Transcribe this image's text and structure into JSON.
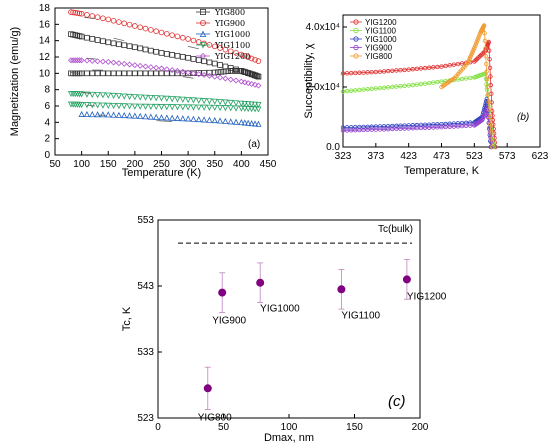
{
  "chart_data": [
    {
      "id": "a",
      "type": "scatter",
      "panel_label": "(a)",
      "xlabel": "Temperature (K)",
      "ylabel": "Magnetization (emu/g)",
      "xlim": [
        50,
        450
      ],
      "ylim": [
        0,
        18
      ],
      "xticks": [
        50,
        100,
        150,
        200,
        250,
        300,
        350,
        400,
        450
      ],
      "yticks": [
        0,
        2,
        4,
        6,
        8,
        10,
        12,
        14,
        16,
        18
      ],
      "legend_position": "top-right",
      "series": [
        {
          "name": "YIG800",
          "color": "#333333",
          "marker": "square",
          "fc_x": [
            80,
            100,
            150,
            200,
            250,
            300,
            350,
            380,
            400,
            420,
            432
          ],
          "fc_y": [
            10.0,
            10.0,
            10.0,
            10.0,
            10.0,
            10.0,
            10.1,
            10.3,
            10.3,
            9.9,
            9.6
          ],
          "zfc_x": [
            80,
            100,
            150,
            200,
            250,
            300,
            350,
            400,
            432
          ],
          "zfc_y": [
            14.8,
            14.5,
            13.8,
            13.2,
            12.5,
            11.9,
            11.2,
            10.3,
            9.6
          ]
        },
        {
          "name": "YIG900",
          "color": "#e03030",
          "marker": "circle",
          "x": [
            80,
            100,
            150,
            200,
            250,
            300,
            350,
            400,
            432
          ],
          "y": [
            17.5,
            17.3,
            16.6,
            15.8,
            15.0,
            14.2,
            13.3,
            12.3,
            11.5
          ]
        },
        {
          "name": "YIG1000",
          "color": "#2060c0",
          "marker": "triangle-up",
          "x": [
            100,
            150,
            200,
            250,
            300,
            350,
            400,
            432
          ],
          "y": [
            5.0,
            4.95,
            4.8,
            4.6,
            4.45,
            4.25,
            4.0,
            3.8
          ]
        },
        {
          "name": "YIG1100",
          "color": "#20a060",
          "marker": "triangle-down",
          "fc_x": [
            80,
            100,
            150,
            200,
            250,
            300,
            350,
            400,
            432
          ],
          "fc_y": [
            7.5,
            7.45,
            7.3,
            7.1,
            6.95,
            6.75,
            6.55,
            6.3,
            6.15
          ],
          "zfc_x": [
            80,
            100,
            150,
            200,
            250,
            300,
            350,
            400,
            432
          ],
          "zfc_y": [
            6.2,
            6.15,
            6.05,
            5.95,
            5.9,
            5.85,
            5.8,
            5.7,
            5.6
          ]
        },
        {
          "name": "YIG1200",
          "color": "#b050d0",
          "marker": "diamond",
          "x": [
            80,
            100,
            150,
            200,
            250,
            300,
            350,
            400,
            432
          ],
          "y": [
            11.6,
            11.6,
            11.4,
            11.0,
            10.6,
            10.1,
            9.6,
            9.0,
            8.5
          ]
        }
      ]
    },
    {
      "id": "b",
      "type": "line",
      "panel_label": "(b)",
      "xlabel": "Temperature, K",
      "ylabel": "Succeptibility, χ",
      "xlim": [
        323,
        623
      ],
      "ylim": [
        0,
        4.4
      ],
      "xticks": [
        323,
        373,
        423,
        473,
        523,
        573,
        623
      ],
      "ytick_labels": [
        "0.0",
        "2.0x10⁴",
        "4.0x10⁴"
      ],
      "ytick_values": [
        0,
        2,
        4
      ],
      "legend_position": "top-left",
      "series": [
        {
          "name": "YIG1200",
          "color": "#e03030",
          "marker": "circle",
          "x": [
            323,
            373,
            423,
            473,
            523,
            540,
            545,
            550,
            555
          ],
          "y": [
            2.45,
            2.5,
            2.58,
            2.68,
            2.85,
            3.2,
            3.5,
            1.2,
            0.0
          ]
        },
        {
          "name": "YIG1100",
          "color": "#80e040",
          "marker": "circle",
          "x": [
            323,
            373,
            423,
            473,
            523,
            540,
            546,
            552
          ],
          "y": [
            1.85,
            1.95,
            2.05,
            2.18,
            2.32,
            2.45,
            1.0,
            0.0
          ]
        },
        {
          "name": "YIG1000",
          "color": "#3040c0",
          "marker": "circle",
          "x": [
            323,
            373,
            423,
            473,
            523,
            535,
            542,
            548
          ],
          "y": [
            0.65,
            0.68,
            0.72,
            0.76,
            0.82,
            1.0,
            1.6,
            0.0
          ]
        },
        {
          "name": "YIG900",
          "color": "#9040d0",
          "marker": "circle",
          "x": [
            323,
            373,
            423,
            473,
            523,
            535,
            543,
            549
          ],
          "y": [
            0.55,
            0.58,
            0.62,
            0.66,
            0.72,
            0.9,
            1.3,
            0.0
          ]
        },
        {
          "name": "YIG800",
          "color": "#f09a30",
          "marker": "circle",
          "x": [
            473,
            493,
            513,
            523,
            533,
            538,
            543,
            550
          ],
          "y": [
            2.0,
            2.3,
            2.8,
            3.3,
            3.85,
            4.05,
            2.0,
            0.0
          ]
        }
      ]
    },
    {
      "id": "c",
      "type": "scatter",
      "panel_label": "(c)",
      "xlabel": "Dmax, nm",
      "ylabel": "Tc, K",
      "xlim": [
        0,
        200
      ],
      "ylim": [
        523,
        553
      ],
      "xticks": [
        0,
        50,
        100,
        150,
        200
      ],
      "yticks": [
        523,
        533,
        543,
        553
      ],
      "reference_line": {
        "label": "Tc(bulk)",
        "y": 549.5
      },
      "points": [
        {
          "label": "YIG800",
          "x": 38,
          "y": 527.5,
          "err": 3.2
        },
        {
          "label": "YIG900",
          "x": 49,
          "y": 542.0,
          "err": 3.0
        },
        {
          "label": "YIG1000",
          "x": 78,
          "y": 543.5,
          "err": 3.0
        },
        {
          "label": "YIG1100",
          "x": 140,
          "y": 542.5,
          "err": 3.0
        },
        {
          "label": "YIG1200",
          "x": 190,
          "y": 544.0,
          "err": 3.0
        }
      ],
      "marker_color": "#800080"
    }
  ]
}
